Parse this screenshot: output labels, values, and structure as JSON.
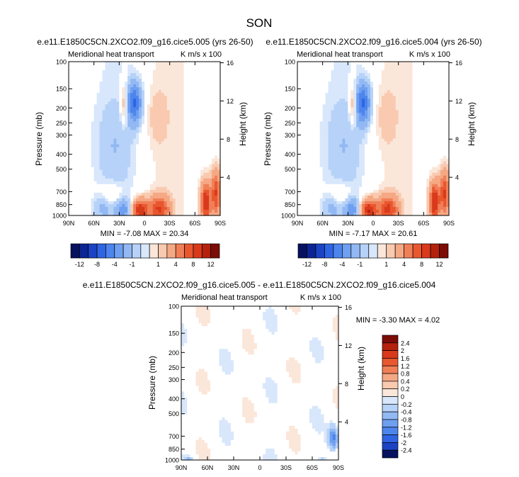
{
  "title": "SON",
  "colors": {
    "pos": [
      "#fbe6da",
      "#f9cab0",
      "#f5a884",
      "#f07f58",
      "#e9572f",
      "#d93a1b",
      "#b4220d",
      "#7c0c06"
    ],
    "neg": [
      "#d8e7fb",
      "#b7d2f8",
      "#92b9f3",
      "#6e9ff0",
      "#4d85ed",
      "#2f65e3",
      "#1b43c3",
      "#0c2595",
      "#06115f"
    ],
    "zero": "#ffffff"
  },
  "chart_data": [
    {
      "type": "heatmap",
      "title": "e.e11.E1850C5CN.2XCO2.f09_g16.cice5.005 (yrs 26-50)",
      "label_left": "Meridional heat transport",
      "label_right": "K m/s x 100",
      "xlabel": "",
      "ylabel": "Pressure (mb)",
      "ylabel_right": "Height (km)",
      "x_ticks": [
        "90N",
        "60N",
        "30N",
        "0",
        "30S",
        "60S",
        "90S"
      ],
      "x_values": [
        90,
        60,
        30,
        0,
        -30,
        -60,
        -90
      ],
      "y_ticks": [
        "100",
        "150",
        "200",
        "250",
        "300",
        "400",
        "500",
        "700",
        "850",
        "1000"
      ],
      "y_values": [
        100,
        150,
        200,
        250,
        300,
        400,
        500,
        700,
        850,
        1000
      ],
      "height_ticks": [
        "16",
        "12",
        "8",
        "4"
      ],
      "height_values": [
        16,
        12,
        8,
        4
      ],
      "xlim": [
        90,
        -90
      ],
      "ylim": [
        100,
        1000
      ],
      "min_label": "MIN = -7.08  MAX = 20.34",
      "min": -7.08,
      "max": 20.34,
      "colorbar_labels": [
        "-12",
        "-8",
        "-4",
        "-1",
        "1",
        "4",
        "8",
        "12"
      ],
      "colorbar_levels": [
        -12,
        -10,
        -8,
        -6,
        -4,
        -2,
        -1,
        -0.5,
        0.5,
        1,
        2,
        4,
        6,
        8,
        10,
        12
      ],
      "features": [
        {
          "lat": 12,
          "p": 185,
          "amp": -8,
          "wlat": 6,
          "wlogp": 0.09
        },
        {
          "lat": 24,
          "p": 190,
          "amp": 3,
          "wlat": 3,
          "wlogp": 0.1
        },
        {
          "lat": -16,
          "p": 230,
          "amp": 1.2,
          "wlat": 8,
          "wlogp": 0.12
        },
        {
          "lat": 35,
          "p": 350,
          "amp": -1.5,
          "wlat": 15,
          "wlogp": 0.2
        },
        {
          "lat": 25,
          "p": 920,
          "amp": -5,
          "wlat": 7,
          "wlogp": 0.05
        },
        {
          "lat": 48,
          "p": 880,
          "amp": -2.5,
          "wlat": 8,
          "wlogp": 0.06
        },
        {
          "lat": 5,
          "p": 930,
          "amp": 10,
          "wlat": 7,
          "wlogp": 0.05
        },
        {
          "lat": -18,
          "p": 910,
          "amp": 8,
          "wlat": 8,
          "wlogp": 0.06
        },
        {
          "lat": 40,
          "p": 760,
          "amp": 2,
          "wlat": 10,
          "wlogp": 0.06
        },
        {
          "lat": -73,
          "p": 820,
          "amp": 10,
          "wlat": 4,
          "wlogp": 0.09
        },
        {
          "lat": -85,
          "p": 720,
          "amp": 8,
          "wlat": 4,
          "wlogp": 0.1
        }
      ]
    },
    {
      "type": "heatmap",
      "title": "e.e11.E1850C5CN.2XCO2.f09_g16.cice5.004 (yrs 26-50)",
      "label_left": "Meridional heat transport",
      "label_right": "K m/s x 100",
      "xlabel": "",
      "ylabel": "Pressure (mb)",
      "ylabel_right": "Height (km)",
      "x_ticks": [
        "90N",
        "60N",
        "30N",
        "0",
        "30S",
        "60S",
        "90S"
      ],
      "x_values": [
        90,
        60,
        30,
        0,
        -30,
        -60,
        -90
      ],
      "y_ticks": [
        "100",
        "150",
        "200",
        "250",
        "300",
        "400",
        "500",
        "700",
        "850",
        "1000"
      ],
      "y_values": [
        100,
        150,
        200,
        250,
        300,
        400,
        500,
        700,
        850,
        1000
      ],
      "height_ticks": [
        "16",
        "12",
        "8",
        "4"
      ],
      "height_values": [
        16,
        12,
        8,
        4
      ],
      "xlim": [
        90,
        -90
      ],
      "ylim": [
        100,
        1000
      ],
      "min_label": "MIN = -7.17  MAX = 20.61",
      "min": -7.17,
      "max": 20.61,
      "colorbar_labels": [
        "-12",
        "-8",
        "-4",
        "-1",
        "1",
        "4",
        "8",
        "12"
      ],
      "colorbar_levels": [
        -12,
        -10,
        -8,
        -6,
        -4,
        -2,
        -1,
        -0.5,
        0.5,
        1,
        2,
        4,
        6,
        8,
        10,
        12
      ],
      "features": [
        {
          "lat": 12,
          "p": 185,
          "amp": -8.2,
          "wlat": 6,
          "wlogp": 0.09
        },
        {
          "lat": 24,
          "p": 190,
          "amp": 3,
          "wlat": 3,
          "wlogp": 0.1
        },
        {
          "lat": -16,
          "p": 230,
          "amp": 1.2,
          "wlat": 8,
          "wlogp": 0.12
        },
        {
          "lat": 35,
          "p": 350,
          "amp": -1.5,
          "wlat": 15,
          "wlogp": 0.2
        },
        {
          "lat": 25,
          "p": 920,
          "amp": -5.1,
          "wlat": 7,
          "wlogp": 0.05
        },
        {
          "lat": 48,
          "p": 880,
          "amp": -2.5,
          "wlat": 8,
          "wlogp": 0.06
        },
        {
          "lat": 5,
          "p": 930,
          "amp": 10.2,
          "wlat": 7,
          "wlogp": 0.05
        },
        {
          "lat": -18,
          "p": 910,
          "amp": 8.1,
          "wlat": 8,
          "wlogp": 0.06
        },
        {
          "lat": 40,
          "p": 760,
          "amp": 2,
          "wlat": 10,
          "wlogp": 0.06
        },
        {
          "lat": -73,
          "p": 820,
          "amp": 10.3,
          "wlat": 4,
          "wlogp": 0.09
        },
        {
          "lat": -85,
          "p": 720,
          "amp": 8.2,
          "wlat": 4,
          "wlogp": 0.1
        }
      ]
    },
    {
      "type": "heatmap",
      "title": "e.e11.E1850C5CN.2XCO2.f09_g16.cice5.005 - e.e11.E1850C5CN.2XCO2.f09_g16.cice5.004",
      "label_left": "Meridional heat transport",
      "label_right": "K m/s x 100",
      "xlabel": "",
      "ylabel": "Pressure (mb)",
      "ylabel_right": "Height (km)",
      "x_ticks": [
        "90N",
        "60N",
        "30N",
        "0",
        "30S",
        "60S",
        "90S"
      ],
      "x_values": [
        90,
        60,
        30,
        0,
        -30,
        -60,
        -90
      ],
      "y_ticks": [
        "100",
        "150",
        "200",
        "250",
        "300",
        "400",
        "500",
        "700",
        "850",
        "1000"
      ],
      "y_values": [
        100,
        150,
        200,
        250,
        300,
        400,
        500,
        700,
        850,
        1000
      ],
      "height_ticks": [
        "16",
        "12",
        "8",
        "4"
      ],
      "height_values": [
        16,
        12,
        8,
        4
      ],
      "xlim": [
        90,
        -90
      ],
      "ylim": [
        100,
        1000
      ],
      "min_label": "MIN = -3.30  MAX =  4.02",
      "min": -3.3,
      "max": 4.02,
      "colorbar_labels": [
        "2.4",
        "2",
        "1.6",
        "1.2",
        "0.8",
        "0.4",
        "0.2",
        "0",
        "-0.2",
        "-0.4",
        "-0.8",
        "-1.2",
        "-1.6",
        "-2",
        "-2.4"
      ],
      "colorbar_levels": [
        -2.4,
        -2,
        -1.6,
        -1.2,
        -0.8,
        -0.4,
        -0.2,
        0,
        0.2,
        0.4,
        0.8,
        1.2,
        1.6,
        2,
        2.4
      ]
    }
  ]
}
